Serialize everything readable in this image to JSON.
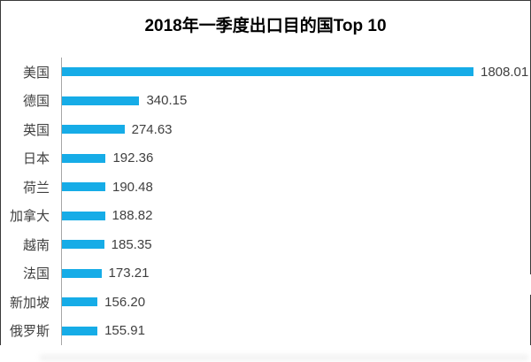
{
  "chart_data": {
    "type": "bar",
    "orientation": "horizontal",
    "title": "2018年一季度出口目的国Top 10",
    "categories": [
      "美国",
      "德国",
      "英国",
      "日本",
      "荷兰",
      "加拿大",
      "越南",
      "法国",
      "新加坡",
      "俄罗斯"
    ],
    "values": [
      1808.01,
      340.15,
      274.63,
      192.36,
      190.48,
      188.82,
      185.35,
      173.21,
      156.2,
      155.91
    ],
    "value_labels": [
      "1808.01",
      "340.15",
      "274.63",
      "192.36",
      "190.48",
      "188.82",
      "185.35",
      "173.21",
      "156.20",
      "155.91"
    ],
    "xlabel": "",
    "ylabel": "",
    "xlim": [
      0,
      1900
    ],
    "grid": false,
    "legend": false,
    "bar_color": "#16ace7",
    "axis_line_color": "#a6a6a6",
    "text_color": "#404040",
    "title_color": "#000000"
  }
}
